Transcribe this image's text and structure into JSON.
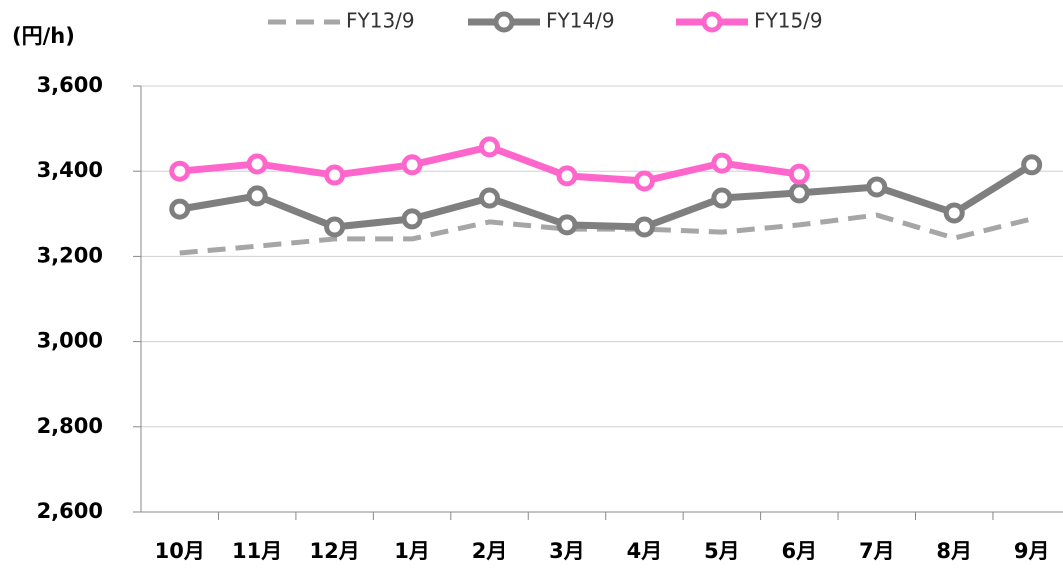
{
  "chart_data": {
    "type": "line",
    "y_label": "(円/h)",
    "categories": [
      "10月",
      "11月",
      "12月",
      "1月",
      "2月",
      "3月",
      "4月",
      "5月",
      "6月",
      "7月",
      "8月",
      "9月"
    ],
    "series": [
      {
        "name": "FY13/9",
        "color": "#a6a6a6",
        "line_style": "dashed",
        "markers": false,
        "values": [
          3208,
          3224,
          3241,
          3241,
          3281,
          3264,
          3264,
          3257,
          3274,
          3297,
          3243,
          3288
        ]
      },
      {
        "name": "FY14/9",
        "color": "#7f7f7f",
        "line_style": "solid",
        "markers": true,
        "values": [
          3311,
          3342,
          3269,
          3288,
          3337,
          3274,
          3269,
          3337,
          3349,
          3363,
          3302,
          3415
        ]
      },
      {
        "name": "FY15/9",
        "color": "#ff66cc",
        "line_style": "solid",
        "markers": true,
        "values": [
          3400,
          3417,
          3391,
          3415,
          3457,
          3389,
          3377,
          3419,
          3393,
          null,
          null,
          null
        ]
      }
    ],
    "ylim": [
      2600,
      3600
    ],
    "yticks": [
      {
        "value": 2600,
        "label": "2,600"
      },
      {
        "value": 2800,
        "label": "2,800"
      },
      {
        "value": 3000,
        "label": "3,000"
      },
      {
        "value": 3200,
        "label": "3,200"
      },
      {
        "value": 3400,
        "label": "3,400"
      },
      {
        "value": 3600,
        "label": "3,600"
      }
    ],
    "grid": true,
    "legend": "top"
  }
}
